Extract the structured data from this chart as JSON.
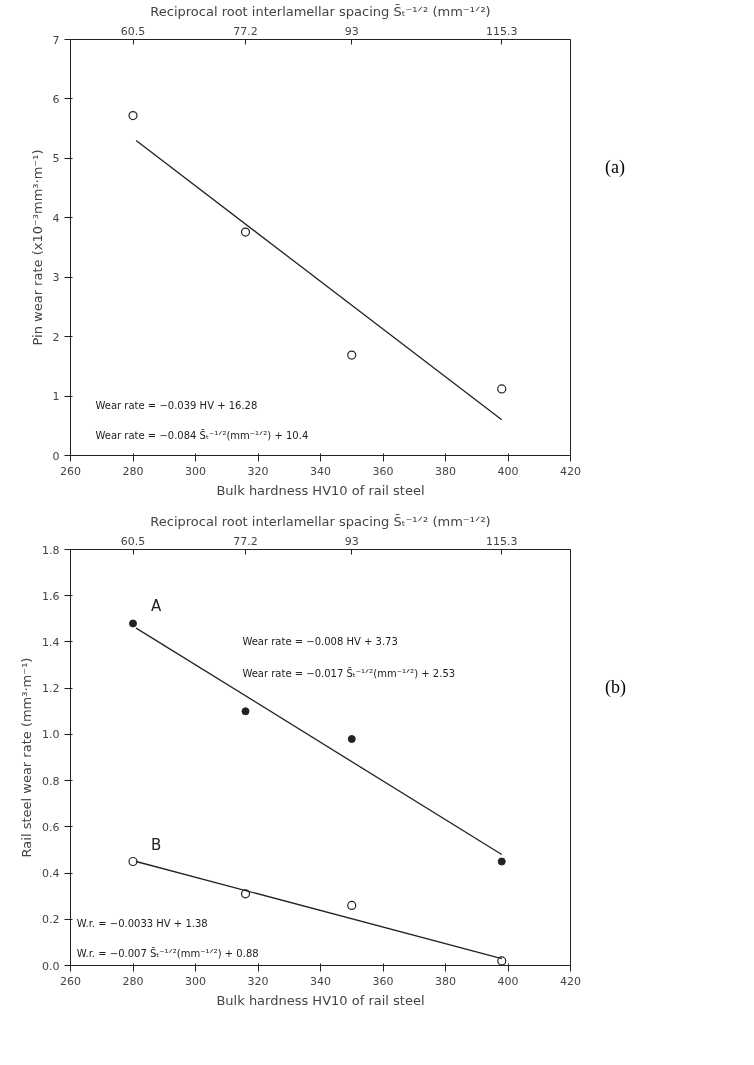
{
  "chart_data": [
    {
      "type": "scatter",
      "xlabel": "Bulk hardness HV10 of rail steel",
      "ylabel": "Pin wear rate (x10⁻³mm³·m⁻¹)",
      "x2label": "Reciprocal root interlamellar spacing S̄ₜ⁻¹ᐟ² (mm⁻¹ᐟ²)",
      "xlim": [
        260,
        420
      ],
      "xticks": [
        260,
        280,
        300,
        320,
        340,
        360,
        380,
        400,
        420
      ],
      "ylim": [
        0,
        7
      ],
      "yticks": [
        0,
        1,
        2,
        3,
        4,
        5,
        6,
        7
      ],
      "x2lim": [
        51.2,
        125.5
      ],
      "x2ticks": [
        60.5,
        77.2,
        93,
        115.3
      ],
      "grid": false,
      "marker": "circle",
      "series": [
        {
          "color": "#222222",
          "x": [
            280,
            316,
            350,
            398
          ],
          "values": [
            5.72,
            3.76,
            1.69,
            1.12
          ]
        },
        {
          "type": "line",
          "color": "#222222",
          "x": [
            281,
            398
          ],
          "values": [
            5.3,
            0.6
          ],
          "marker": "none"
        }
      ],
      "annotations": [
        "Wear rate = −0.039 HV + 16.28",
        "Wear rate = −0.084 S̄ₜ⁻¹ᐟ²(mm⁻¹ᐟ²) + 10.4",
        "(a)"
      ]
    },
    {
      "type": "scatter",
      "xlabel": "Bulk hardness HV10 of rail steel",
      "ylabel": "Rail steel wear rate (mm³·m⁻¹)",
      "x2label": "Reciprocal root interlamellar spacing S̄ₜ⁻¹ᐟ² (mm⁻¹ᐟ²)",
      "xlim": [
        260,
        420
      ],
      "xticks": [
        260,
        280,
        300,
        320,
        340,
        360,
        380,
        400,
        420
      ],
      "ylim": [
        0,
        1.8
      ],
      "yticks": [
        {
          "value": 0,
          "label": "0.0"
        },
        0.2,
        0.4,
        0.6,
        0.8,
        {
          "value": 1,
          "label": "1.0"
        },
        1.2,
        1.4,
        1.6,
        1.8
      ],
      "x2lim": [
        51.2,
        125.5
      ],
      "x2ticks": [
        60.5,
        77.2,
        93,
        115.3
      ],
      "grid": false,
      "marker": "circle",
      "series": [
        {
          "name": "A",
          "color": "#222222",
          "x": [
            280,
            316,
            350,
            398
          ],
          "values": [
            1.48,
            1.1,
            0.98,
            0.45
          ],
          "marker": "dot"
        },
        {
          "type": "line",
          "color": "#222222",
          "x": [
            281,
            398
          ],
          "values": [
            1.46,
            0.48
          ],
          "marker": "none"
        },
        {
          "name": "B",
          "color": "#222222",
          "x": [
            280,
            316,
            350,
            398
          ],
          "values": [
            0.45,
            0.31,
            0.26,
            0.02
          ],
          "marker": "circle"
        },
        {
          "type": "line",
          "color": "#222222",
          "x": [
            281,
            398
          ],
          "values": [
            0.45,
            0.03
          ],
          "marker": "none"
        }
      ],
      "annotations": [
        "Wear rate = −0.008 HV + 3.73",
        "Wear rate = −0.017 S̄ₜ⁻¹ᐟ²(mm⁻¹ᐟ²) + 2.53",
        "W.r. = −0.0033 HV + 1.38",
        "W.r. = −0.007 S̄ₜ⁻¹ᐟ²(mm⁻¹ᐟ²) + 0.88",
        "(b)"
      ]
    }
  ]
}
